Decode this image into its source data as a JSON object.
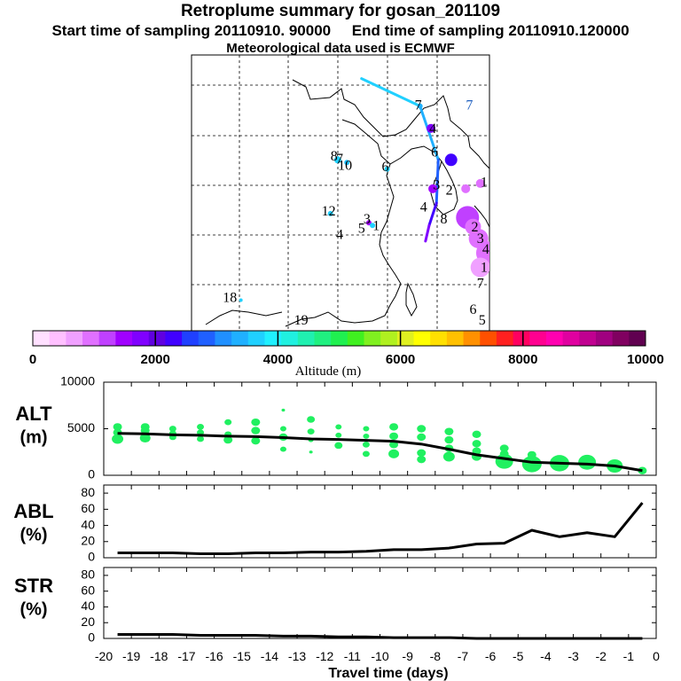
{
  "header": {
    "title": "Retroplume summary for gosan_201109",
    "start_label": "Start time of sampling 20110910. 90000",
    "end_label": "End time of sampling 20110910.120000",
    "met_label": "Meteorological data used is ECMWF"
  },
  "colorbar": {
    "ticks": [
      "0",
      "2000",
      "4000",
      "6000",
      "8000",
      "10000"
    ],
    "label": "Altitude (m)",
    "colors": [
      "#ffe0ff",
      "#ffc0ff",
      "#f0a0ff",
      "#e070ff",
      "#c040ff",
      "#a000ff",
      "#8000ff",
      "#6000e0",
      "#4000ff",
      "#2040ff",
      "#2060ff",
      "#2090ff",
      "#20b0ff",
      "#20d0ff",
      "#20f0ff",
      "#20f0e0",
      "#20f0b0",
      "#20f080",
      "#20f050",
      "#40f020",
      "#80f020",
      "#b0f020",
      "#e0f020",
      "#ffff00",
      "#ffe000",
      "#ffc000",
      "#ff9000",
      "#ff5000",
      "#ff2020",
      "#ff0060",
      "#ff0090",
      "#ff00b0",
      "#e000a0",
      "#c00090",
      "#a00080",
      "#800060",
      "#600050"
    ]
  },
  "map": {
    "trajectory": [
      [
        45.0,
        123.5
      ],
      [
        42.9,
        126.7
      ],
      [
        38.8,
        127.7
      ],
      [
        35.5,
        127.6
      ],
      [
        33.8,
        127.2
      ],
      [
        32.6,
        127.0
      ]
    ],
    "colors": [
      "#20d0ff",
      "#20b0ff",
      "#2060ff",
      "#4000ff",
      "#8000ff",
      "#a000ff"
    ],
    "labels": [
      {
        "text": "7",
        "lat": 42.9,
        "lon": 126.6,
        "color": "#000000"
      },
      {
        "text": "7",
        "lat": 42.9,
        "lon": 129.4,
        "color": "#2060c0"
      },
      {
        "text": "4",
        "lat": 41.1,
        "lon": 127.4,
        "color": "#000000"
      },
      {
        "text": "6",
        "lat": 39.3,
        "lon": 127.5,
        "color": "#000000"
      },
      {
        "text": "8",
        "lat": 39.0,
        "lon": 122.0,
        "color": "#000000"
      },
      {
        "text": "7",
        "lat": 38.8,
        "lon": 122.3,
        "color": "#000000"
      },
      {
        "text": "10",
        "lat": 38.3,
        "lon": 122.6,
        "color": "#000000"
      },
      {
        "text": "6",
        "lat": 38.2,
        "lon": 124.8,
        "color": "#000000"
      },
      {
        "text": "3",
        "lat": 36.8,
        "lon": 127.6,
        "color": "#000000"
      },
      {
        "text": "2",
        "lat": 36.4,
        "lon": 128.3,
        "color": "#000000"
      },
      {
        "text": "1",
        "lat": 37.0,
        "lon": 130.2,
        "color": "#000000"
      },
      {
        "text": "4",
        "lat": 35.1,
        "lon": 126.9,
        "color": "#000000"
      },
      {
        "text": "12",
        "lat": 34.8,
        "lon": 121.7,
        "color": "#000000"
      },
      {
        "text": "3",
        "lat": 34.2,
        "lon": 123.8,
        "color": "#000000"
      },
      {
        "text": "5",
        "lat": 33.5,
        "lon": 123.5,
        "color": "#000000"
      },
      {
        "text": "1",
        "lat": 33.7,
        "lon": 124.3,
        "color": "#000000"
      },
      {
        "text": "4",
        "lat": 33.0,
        "lon": 122.3,
        "color": "#000000"
      },
      {
        "text": "8",
        "lat": 34.2,
        "lon": 128.0,
        "color": "#000000"
      },
      {
        "text": "2",
        "lat": 33.6,
        "lon": 129.7,
        "color": "#000000"
      },
      {
        "text": "3",
        "lat": 32.7,
        "lon": 130.0,
        "color": "#000000"
      },
      {
        "text": "4",
        "lat": 31.9,
        "lon": 130.3,
        "color": "#000000"
      },
      {
        "text": "1",
        "lat": 30.5,
        "lon": 130.2,
        "color": "#000000"
      },
      {
        "text": "7",
        "lat": 29.3,
        "lon": 130.0,
        "color": "#000000"
      },
      {
        "text": "18",
        "lat": 28.2,
        "lon": 116.3,
        "color": "#000000"
      },
      {
        "text": "6",
        "lat": 27.3,
        "lon": 129.6,
        "color": "#000000"
      },
      {
        "text": "5",
        "lat": 26.5,
        "lon": 130.1,
        "color": "#000000"
      },
      {
        "text": "19",
        "lat": 26.5,
        "lon": 120.2,
        "color": "#000000"
      }
    ],
    "bubbles": [
      {
        "lat": 42.9,
        "lon": 126.7,
        "r": 3,
        "color": "#20b0ff"
      },
      {
        "lat": 41.2,
        "lon": 127.3,
        "r": 5,
        "color": "#8000ff"
      },
      {
        "lat": 38.8,
        "lon": 122.2,
        "r": 4,
        "color": "#20d0ff"
      },
      {
        "lat": 38.6,
        "lon": 122.7,
        "r": 3,
        "color": "#20c0ff"
      },
      {
        "lat": 38.1,
        "lon": 124.9,
        "r": 3,
        "color": "#20d0ff"
      },
      {
        "lat": 38.8,
        "lon": 128.4,
        "r": 7,
        "color": "#4000ff"
      },
      {
        "lat": 36.6,
        "lon": 127.4,
        "r": 5,
        "color": "#a000ff"
      },
      {
        "lat": 36.6,
        "lon": 129.2,
        "r": 5,
        "color": "#e070ff"
      },
      {
        "lat": 37.0,
        "lon": 130.0,
        "r": 5,
        "color": "#e070ff"
      },
      {
        "lat": 34.7,
        "lon": 121.8,
        "r": 3,
        "color": "#20d0ff"
      },
      {
        "lat": 34.0,
        "lon": 123.9,
        "r": 3,
        "color": "#a000ff"
      },
      {
        "lat": 33.8,
        "lon": 124.1,
        "r": 3,
        "color": "#20d0ff"
      },
      {
        "lat": 34.4,
        "lon": 129.3,
        "r": 13,
        "color": "#c040ff"
      },
      {
        "lat": 33.7,
        "lon": 129.6,
        "r": 9,
        "color": "#e070ff"
      },
      {
        "lat": 32.8,
        "lon": 129.9,
        "r": 11,
        "color": "#e070ff"
      },
      {
        "lat": 31.7,
        "lon": 130.4,
        "r": 13,
        "color": "#e070ff"
      },
      {
        "lat": 30.6,
        "lon": 130.0,
        "r": 11,
        "color": "#f0a0ff"
      },
      {
        "lat": 28.1,
        "lon": 116.9,
        "r": 2,
        "color": "#20d0ff"
      }
    ]
  },
  "chart_data": [
    {
      "type": "line",
      "panel": "ALT",
      "ylabel": "ALT\n(m)",
      "ylim": [
        0,
        10000
      ],
      "yticks": [
        0,
        5000,
        10000
      ],
      "x": [
        -19.5,
        -18.5,
        -17.5,
        -16.5,
        -15.5,
        -14.5,
        -13.5,
        -12.5,
        -11.5,
        -10.5,
        -9.5,
        -8.5,
        -7.5,
        -6.5,
        -5.5,
        -4.5,
        -3.5,
        -2.5,
        -1.5,
        -0.5
      ],
      "series": [
        {
          "name": "mean altitude",
          "values": [
            4500,
            4450,
            4350,
            4300,
            4200,
            4150,
            4050,
            3900,
            3850,
            3750,
            3650,
            3350,
            2800,
            2200,
            1800,
            1400,
            1300,
            1200,
            1000,
            500
          ]
        }
      ],
      "points": [
        {
          "x": -19.5,
          "y": 5200,
          "s": 1.0
        },
        {
          "x": -19.5,
          "y": 4600,
          "s": 1.0
        },
        {
          "x": -19.5,
          "y": 3900,
          "s": 1.3
        },
        {
          "x": -18.5,
          "y": 5200,
          "s": 1.0
        },
        {
          "x": -18.5,
          "y": 4800,
          "s": 1.0
        },
        {
          "x": -18.5,
          "y": 4000,
          "s": 1.2
        },
        {
          "x": -17.5,
          "y": 5000,
          "s": 0.8
        },
        {
          "x": -17.5,
          "y": 4500,
          "s": 0.8
        },
        {
          "x": -17.5,
          "y": 4100,
          "s": 0.8
        },
        {
          "x": -16.5,
          "y": 5200,
          "s": 0.8
        },
        {
          "x": -16.5,
          "y": 4600,
          "s": 0.8
        },
        {
          "x": -16.5,
          "y": 3900,
          "s": 0.8
        },
        {
          "x": -15.5,
          "y": 5700,
          "s": 0.8
        },
        {
          "x": -15.5,
          "y": 4400,
          "s": 0.8
        },
        {
          "x": -15.5,
          "y": 3800,
          "s": 1.0
        },
        {
          "x": -14.5,
          "y": 5700,
          "s": 1.0
        },
        {
          "x": -14.5,
          "y": 4800,
          "s": 1.0
        },
        {
          "x": -14.5,
          "y": 3700,
          "s": 1.0
        },
        {
          "x": -13.5,
          "y": 7000,
          "s": 0.4
        },
        {
          "x": -13.5,
          "y": 5000,
          "s": 0.7
        },
        {
          "x": -13.5,
          "y": 4100,
          "s": 1.0
        },
        {
          "x": -13.5,
          "y": 2800,
          "s": 0.7
        },
        {
          "x": -12.5,
          "y": 6000,
          "s": 0.9
        },
        {
          "x": -12.5,
          "y": 4700,
          "s": 0.8
        },
        {
          "x": -12.5,
          "y": 3800,
          "s": 0.6
        },
        {
          "x": -12.5,
          "y": 2500,
          "s": 0.4
        },
        {
          "x": -11.5,
          "y": 5200,
          "s": 0.7
        },
        {
          "x": -11.5,
          "y": 4300,
          "s": 0.7
        },
        {
          "x": -11.5,
          "y": 3200,
          "s": 0.9
        },
        {
          "x": -10.5,
          "y": 5000,
          "s": 0.7
        },
        {
          "x": -10.5,
          "y": 4200,
          "s": 0.7
        },
        {
          "x": -10.5,
          "y": 3300,
          "s": 0.8
        },
        {
          "x": -10.5,
          "y": 2300,
          "s": 0.8
        },
        {
          "x": -9.5,
          "y": 5200,
          "s": 1.0
        },
        {
          "x": -9.5,
          "y": 4200,
          "s": 1.0
        },
        {
          "x": -9.5,
          "y": 3300,
          "s": 1.0
        },
        {
          "x": -9.5,
          "y": 2300,
          "s": 1.2
        },
        {
          "x": -8.5,
          "y": 5000,
          "s": 1.0
        },
        {
          "x": -8.5,
          "y": 4100,
          "s": 1.0
        },
        {
          "x": -8.5,
          "y": 2400,
          "s": 1.0
        },
        {
          "x": -8.5,
          "y": 1700,
          "s": 1.0
        },
        {
          "x": -7.5,
          "y": 4700,
          "s": 1.0
        },
        {
          "x": -7.5,
          "y": 3800,
          "s": 1.0
        },
        {
          "x": -7.5,
          "y": 2900,
          "s": 1.0
        },
        {
          "x": -7.5,
          "y": 2000,
          "s": 1.3
        },
        {
          "x": -6.5,
          "y": 4400,
          "s": 1.0
        },
        {
          "x": -6.5,
          "y": 3400,
          "s": 1.0
        },
        {
          "x": -6.5,
          "y": 2600,
          "s": 1.0
        },
        {
          "x": -6.5,
          "y": 2000,
          "s": 1.1
        },
        {
          "x": -5.5,
          "y": 2900,
          "s": 1.0
        },
        {
          "x": -5.5,
          "y": 2300,
          "s": 1.0
        },
        {
          "x": -5.5,
          "y": 1500,
          "s": 2.0
        },
        {
          "x": -4.5,
          "y": 2200,
          "s": 1.0
        },
        {
          "x": -4.5,
          "y": 1200,
          "s": 2.2
        },
        {
          "x": -3.5,
          "y": 1300,
          "s": 2.2
        },
        {
          "x": -2.5,
          "y": 1400,
          "s": 2.0
        },
        {
          "x": -1.5,
          "y": 1000,
          "s": 1.8
        },
        {
          "x": -0.5,
          "y": 500,
          "s": 1.0
        }
      ]
    },
    {
      "type": "line",
      "panel": "ABL",
      "ylabel": "ABL\n(%)",
      "ylim": [
        0,
        90
      ],
      "yticks": [
        0,
        20,
        40,
        60,
        80
      ],
      "x": [
        -19.5,
        -18.5,
        -17.5,
        -16.5,
        -15.5,
        -14.5,
        -13.5,
        -12.5,
        -11.5,
        -10.5,
        -9.5,
        -8.5,
        -7.5,
        -6.5,
        -5.5,
        -4.5,
        -3.5,
        -2.5,
        -1.5,
        -0.5
      ],
      "series": [
        {
          "name": "ABL",
          "values": [
            6,
            6,
            6,
            5,
            5,
            6,
            6,
            7,
            7,
            8,
            10,
            10,
            12,
            17,
            18,
            34,
            26,
            31,
            26,
            68
          ]
        }
      ]
    },
    {
      "type": "line",
      "panel": "STR",
      "ylabel": "STR\n(%)",
      "ylim": [
        0,
        90
      ],
      "yticks": [
        0,
        20,
        40,
        60,
        80
      ],
      "x": [
        -19.5,
        -18.5,
        -17.5,
        -16.5,
        -15.5,
        -14.5,
        -13.5,
        -12.5,
        -11.5,
        -10.5,
        -9.5,
        -8.5,
        -7.5,
        -6.5,
        -5.5,
        -4.5,
        -3.5,
        -2.5,
        -1.5,
        -0.5
      ],
      "series": [
        {
          "name": "STR",
          "values": [
            5,
            5,
            5,
            4,
            4,
            4,
            3,
            3,
            2,
            2,
            1,
            1,
            1,
            0,
            0,
            0,
            0,
            0,
            0,
            0
          ]
        }
      ]
    }
  ],
  "xaxis": {
    "ticks": [
      "-20",
      "-19",
      "-18",
      "-17",
      "-16",
      "-15",
      "-14",
      "-13",
      "-12",
      "-11",
      "-10",
      "-9",
      "-8",
      "-7",
      "-6",
      "-5",
      "-4",
      "-3",
      "-2",
      "-1",
      "0"
    ],
    "label": "Travel time (days)"
  },
  "panel_labels": {
    "alt": [
      "ALT",
      "(m)"
    ],
    "abl": [
      "ABL",
      "(%)"
    ],
    "str": [
      "STR",
      "(%)"
    ]
  },
  "yticks_text": {
    "alt": [
      "0",
      "5000",
      "10000"
    ],
    "pct": [
      "0",
      "20",
      "40",
      "60",
      "80"
    ]
  }
}
